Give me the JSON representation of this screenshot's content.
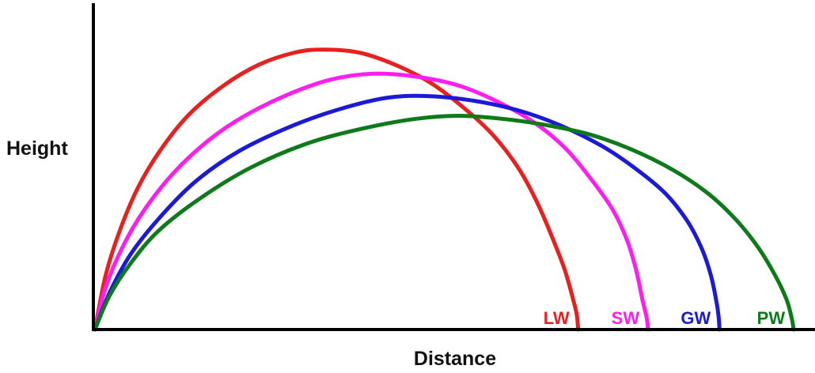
{
  "chart_data": {
    "type": "line",
    "title": "",
    "xlabel": "Distance",
    "ylabel": "Height",
    "grid": false,
    "legend": "inline-at-line-ends",
    "xlim": [
      0,
      100
    ],
    "ylim": [
      0,
      100
    ],
    "series": [
      {
        "name": "LW",
        "color": "#e8201f",
        "points": [
          [
            0,
            0
          ],
          [
            1.5,
            18
          ],
          [
            3.5,
            33
          ],
          [
            6,
            47
          ],
          [
            9,
            59
          ],
          [
            13,
            71
          ],
          [
            18,
            81
          ],
          [
            23,
            88
          ],
          [
            28,
            92
          ],
          [
            32,
            93
          ],
          [
            37,
            92
          ],
          [
            42,
            88
          ],
          [
            47,
            82
          ],
          [
            52,
            73
          ],
          [
            56,
            64
          ],
          [
            59.5,
            53
          ],
          [
            62,
            42
          ],
          [
            64,
            31
          ],
          [
            65.8,
            20
          ],
          [
            67,
            10
          ],
          [
            67.5,
            5
          ],
          [
            67.7,
            0
          ]
        ]
      },
      {
        "name": "SW",
        "color": "#ff1df0",
        "points": [
          [
            0,
            0
          ],
          [
            1.5,
            14
          ],
          [
            4,
            28
          ],
          [
            7,
            40
          ],
          [
            11,
            52
          ],
          [
            16,
            63
          ],
          [
            21,
            71
          ],
          [
            27,
            78
          ],
          [
            33,
            83
          ],
          [
            39,
            85
          ],
          [
            45,
            84
          ],
          [
            51,
            81
          ],
          [
            57,
            75
          ],
          [
            62,
            68
          ],
          [
            66,
            60
          ],
          [
            69.5,
            50
          ],
          [
            72.5,
            40
          ],
          [
            74.5,
            30
          ],
          [
            75.8,
            20
          ],
          [
            76.7,
            10
          ],
          [
            77.3,
            4
          ],
          [
            77.5,
            0
          ]
        ]
      },
      {
        "name": "GW",
        "color": "#1a1ad8",
        "points": [
          [
            0,
            0
          ],
          [
            2,
            12
          ],
          [
            5,
            25
          ],
          [
            9,
            37
          ],
          [
            14,
            49
          ],
          [
            20,
            59
          ],
          [
            27,
            67
          ],
          [
            34,
            73
          ],
          [
            41,
            77
          ],
          [
            47,
            77.5
          ],
          [
            53,
            76
          ],
          [
            59,
            73
          ],
          [
            65,
            68
          ],
          [
            71,
            61
          ],
          [
            76,
            53
          ],
          [
            80,
            45
          ],
          [
            83,
            36
          ],
          [
            85,
            27
          ],
          [
            86.3,
            18
          ],
          [
            87.1,
            9
          ],
          [
            87.4,
            4
          ],
          [
            87.5,
            0
          ]
        ]
      },
      {
        "name": "PW",
        "color": "#0f7a1a",
        "points": [
          [
            0,
            0
          ],
          [
            2,
            11
          ],
          [
            5,
            22
          ],
          [
            9,
            33
          ],
          [
            15,
            44
          ],
          [
            22,
            54
          ],
          [
            30,
            62
          ],
          [
            38,
            67
          ],
          [
            45,
            70
          ],
          [
            51,
            71
          ],
          [
            57,
            70
          ],
          [
            63,
            68
          ],
          [
            69,
            65
          ],
          [
            75,
            60
          ],
          [
            81,
            53
          ],
          [
            86,
            45
          ],
          [
            90,
            36
          ],
          [
            93,
            27
          ],
          [
            95.3,
            18
          ],
          [
            96.9,
            10
          ],
          [
            97.6,
            4
          ],
          [
            97.9,
            0
          ]
        ]
      }
    ]
  }
}
